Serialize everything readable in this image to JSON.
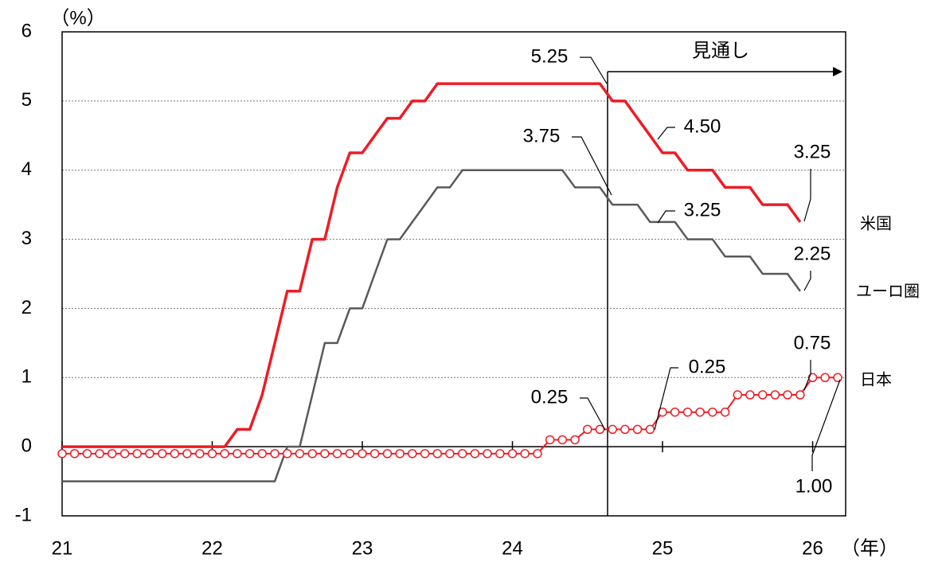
{
  "chart_data": {
    "type": "line",
    "y_unit": "（%）",
    "x_unit": "（年）",
    "x": [
      21,
      21.083,
      21.167,
      21.25,
      21.333,
      21.417,
      21.5,
      21.583,
      21.667,
      21.75,
      21.833,
      21.917,
      22,
      22.083,
      22.167,
      22.25,
      22.333,
      22.417,
      22.5,
      22.583,
      22.667,
      22.75,
      22.833,
      22.917,
      23,
      23.083,
      23.167,
      23.25,
      23.333,
      23.417,
      23.5,
      23.583,
      23.667,
      23.75,
      23.833,
      23.917,
      24,
      24.083,
      24.167,
      24.25,
      24.333,
      24.417,
      24.5,
      24.583,
      24.667,
      24.75,
      24.833,
      24.917,
      25,
      25.083,
      25.167,
      25.25,
      25.333,
      25.417,
      25.5,
      25.583,
      25.667,
      25.75,
      25.833,
      25.917,
      26,
      26.083,
      26.167
    ],
    "series": [
      {
        "name": "米国",
        "color": "#ee1c25",
        "width": 3.5,
        "values": [
          0,
          0,
          0,
          0,
          0,
          0,
          0,
          0,
          0,
          0,
          0,
          0,
          0,
          0,
          0.25,
          0.25,
          0.75,
          1.5,
          2.25,
          2.25,
          3,
          3,
          3.75,
          4.25,
          4.25,
          4.5,
          4.75,
          4.75,
          5,
          5,
          5.25,
          5.25,
          5.25,
          5.25,
          5.25,
          5.25,
          5.25,
          5.25,
          5.25,
          5.25,
          5.25,
          5.25,
          5.25,
          5.25,
          5,
          5,
          4.75,
          4.5,
          4.25,
          4.25,
          4,
          4,
          4,
          3.75,
          3.75,
          3.75,
          3.5,
          3.5,
          3.5,
          3.25,
          null,
          null,
          null
        ]
      },
      {
        "name": "ユーロ圏",
        "color": "#595959",
        "width": 2.5,
        "values": [
          -0.5,
          -0.5,
          -0.5,
          -0.5,
          -0.5,
          -0.5,
          -0.5,
          -0.5,
          -0.5,
          -0.5,
          -0.5,
          -0.5,
          -0.5,
          -0.5,
          -0.5,
          -0.5,
          -0.5,
          -0.5,
          0,
          0,
          0.75,
          1.5,
          1.5,
          2,
          2,
          2.5,
          3,
          3,
          3.25,
          3.5,
          3.75,
          3.75,
          4,
          4,
          4,
          4,
          4,
          4,
          4,
          4,
          4,
          3.75,
          3.75,
          3.75,
          3.5,
          3.5,
          3.5,
          3.25,
          3.25,
          3.25,
          3,
          3,
          3,
          2.75,
          2.75,
          2.75,
          2.5,
          2.5,
          2.5,
          2.25,
          null,
          null,
          null
        ]
      },
      {
        "name": "日本",
        "color": "#ee1c25",
        "width": 2,
        "marker": "circle",
        "values": [
          -0.1,
          -0.1,
          -0.1,
          -0.1,
          -0.1,
          -0.1,
          -0.1,
          -0.1,
          -0.1,
          -0.1,
          -0.1,
          -0.1,
          -0.1,
          -0.1,
          -0.1,
          -0.1,
          -0.1,
          -0.1,
          -0.1,
          -0.1,
          -0.1,
          -0.1,
          -0.1,
          -0.1,
          -0.1,
          -0.1,
          -0.1,
          -0.1,
          -0.1,
          -0.1,
          -0.1,
          -0.1,
          -0.1,
          -0.1,
          -0.1,
          -0.1,
          -0.1,
          -0.1,
          -0.1,
          0.1,
          0.1,
          0.1,
          0.25,
          0.25,
          0.25,
          0.25,
          0.25,
          0.25,
          0.5,
          0.5,
          0.5,
          0.5,
          0.5,
          0.5,
          0.75,
          0.75,
          0.75,
          0.75,
          0.75,
          0.75,
          1,
          1,
          1
        ]
      }
    ],
    "xlim": [
      21,
      26.22
    ],
    "xticks": [
      21,
      22,
      23,
      24,
      25,
      26
    ],
    "ylim": [
      -1,
      6
    ],
    "yticks": [
      -1,
      0,
      1,
      2,
      3,
      4,
      5,
      6
    ],
    "grid": true,
    "annotations": [
      "見通し",
      "5.25",
      "3.75",
      "4.50",
      "3.25",
      "3.25",
      "2.25",
      "0.75",
      "0.25",
      "0.25",
      "1.00"
    ]
  }
}
